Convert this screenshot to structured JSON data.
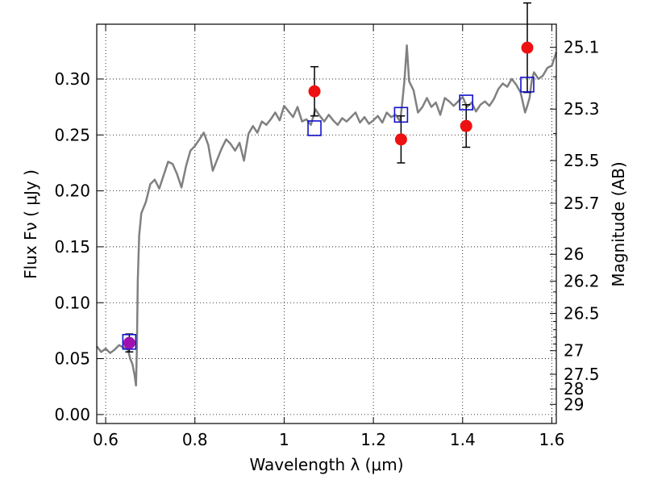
{
  "chart_data": {
    "type": "line",
    "xlabel": "Wavelength  λ (μm)",
    "ylabel": "Flux  Fν ( μJy )",
    "ylabel2": "Magnitude (AB)",
    "xlim": [
      0.58,
      1.61
    ],
    "ylim": [
      -0.008,
      0.349
    ],
    "grid": true,
    "grid_style": "dotted",
    "xticks": [
      0.6,
      0.8,
      1.0,
      1.2,
      1.4,
      1.6
    ],
    "xtick_labels": [
      "0.6",
      "0.8",
      "1",
      "1.2",
      "1.4",
      "1.6"
    ],
    "yticks": [
      0.0,
      0.05,
      0.1,
      0.15,
      0.2,
      0.25,
      0.3
    ],
    "ytick_labels": [
      "0.00",
      "0.05",
      "0.10",
      "0.15",
      "0.20",
      "0.25",
      "0.30"
    ],
    "mag_ticks": [
      {
        "label": "25.1",
        "flux": 0.3283
      },
      {
        "label": "25.3",
        "flux": 0.2731
      },
      {
        "label": "25.5",
        "flux": 0.2271
      },
      {
        "label": "25.7",
        "flux": 0.1889
      },
      {
        "label": "26",
        "flux": 0.1433
      },
      {
        "label": "26.2",
        "flux": 0.1192
      },
      {
        "label": "26.5",
        "flux": 0.0904
      },
      {
        "label": "27",
        "flux": 0.0571
      },
      {
        "label": "27.5",
        "flux": 0.036
      },
      {
        "label": "28",
        "flux": 0.0229
      },
      {
        "label": "29",
        "flux": 0.0091
      }
    ],
    "mag_minor_ticks": [
      25.2,
      25.4,
      25.6,
      25.8,
      25.9,
      26.1,
      26.3,
      26.4,
      26.6,
      26.7,
      26.8,
      26.9
    ],
    "model_spectrum": {
      "color": "#808080",
      "x": [
        0.58,
        0.59,
        0.6,
        0.61,
        0.62,
        0.63,
        0.64,
        0.65,
        0.655,
        0.66,
        0.665,
        0.668,
        0.67,
        0.672,
        0.675,
        0.68,
        0.69,
        0.7,
        0.71,
        0.72,
        0.73,
        0.74,
        0.75,
        0.76,
        0.77,
        0.78,
        0.79,
        0.8,
        0.81,
        0.82,
        0.83,
        0.84,
        0.85,
        0.86,
        0.87,
        0.88,
        0.89,
        0.9,
        0.91,
        0.92,
        0.93,
        0.94,
        0.95,
        0.96,
        0.97,
        0.98,
        0.99,
        1.0,
        1.01,
        1.02,
        1.03,
        1.04,
        1.05,
        1.06,
        1.07,
        1.08,
        1.09,
        1.1,
        1.11,
        1.12,
        1.13,
        1.14,
        1.15,
        1.16,
        1.17,
        1.18,
        1.19,
        1.2,
        1.21,
        1.22,
        1.23,
        1.24,
        1.25,
        1.26,
        1.265,
        1.27,
        1.275,
        1.28,
        1.29,
        1.3,
        1.31,
        1.32,
        1.33,
        1.34,
        1.35,
        1.36,
        1.37,
        1.38,
        1.39,
        1.4,
        1.41,
        1.42,
        1.43,
        1.44,
        1.45,
        1.46,
        1.47,
        1.48,
        1.49,
        1.5,
        1.51,
        1.52,
        1.53,
        1.54,
        1.545,
        1.55,
        1.555,
        1.56,
        1.57,
        1.58,
        1.59,
        1.6,
        1.61
      ],
      "y": [
        0.061,
        0.056,
        0.059,
        0.055,
        0.058,
        0.062,
        0.06,
        0.058,
        0.05,
        0.045,
        0.035,
        0.026,
        0.06,
        0.12,
        0.16,
        0.18,
        0.19,
        0.206,
        0.21,
        0.202,
        0.214,
        0.226,
        0.224,
        0.215,
        0.203,
        0.222,
        0.236,
        0.24,
        0.246,
        0.252,
        0.241,
        0.218,
        0.228,
        0.238,
        0.246,
        0.242,
        0.236,
        0.243,
        0.227,
        0.251,
        0.258,
        0.252,
        0.262,
        0.259,
        0.264,
        0.27,
        0.263,
        0.276,
        0.271,
        0.266,
        0.275,
        0.262,
        0.264,
        0.259,
        0.273,
        0.267,
        0.262,
        0.268,
        0.263,
        0.259,
        0.265,
        0.262,
        0.266,
        0.27,
        0.261,
        0.266,
        0.26,
        0.263,
        0.267,
        0.261,
        0.27,
        0.266,
        0.268,
        0.262,
        0.28,
        0.3,
        0.33,
        0.298,
        0.29,
        0.27,
        0.275,
        0.283,
        0.275,
        0.279,
        0.268,
        0.283,
        0.28,
        0.276,
        0.28,
        0.284,
        0.275,
        0.279,
        0.271,
        0.277,
        0.28,
        0.276,
        0.282,
        0.291,
        0.296,
        0.293,
        0.3,
        0.295,
        0.288,
        0.27,
        0.276,
        0.283,
        0.299,
        0.306,
        0.3,
        0.303,
        0.31,
        0.312,
        0.324
      ]
    },
    "observed": {
      "color": "#ee1111",
      "x": [
        0.653,
        1.068,
        1.262,
        1.408,
        1.545
      ],
      "y": [
        0.064,
        0.289,
        0.246,
        0.258,
        0.328
      ],
      "yerr": [
        0.008,
        0.022,
        0.021,
        0.019,
        0.04
      ]
    },
    "synthetic": {
      "color": "#1010cc",
      "x": [
        0.653,
        1.068,
        1.262,
        1.408,
        1.545
      ],
      "y": [
        0.065,
        0.256,
        0.268,
        0.279,
        0.295
      ]
    },
    "highlight_point": {
      "x": 0.653,
      "y": 0.064,
      "color": "#a010b0"
    }
  }
}
